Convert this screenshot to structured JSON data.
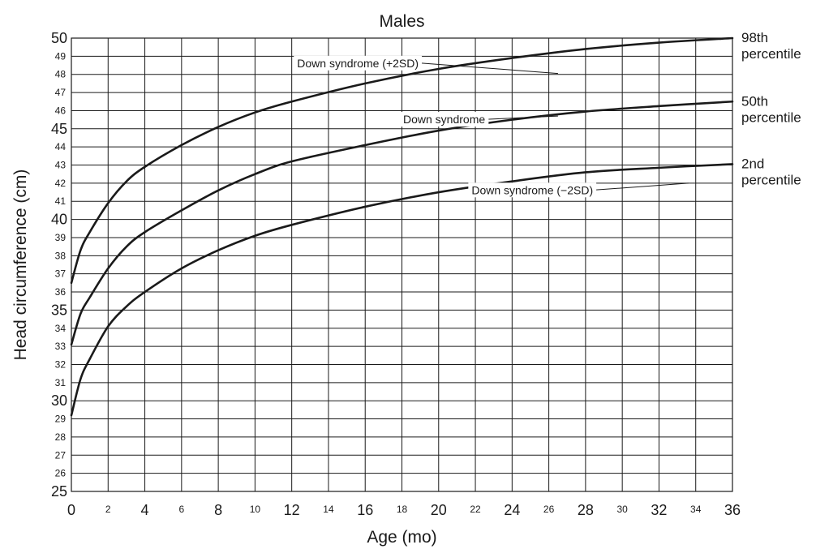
{
  "chart_data": {
    "type": "line",
    "title": "Males",
    "xlabel": "Age (mo)",
    "ylabel": "Head circumference (cm)",
    "xlim": [
      0,
      36
    ],
    "ylim": [
      25,
      50
    ],
    "x_ticks": [
      0,
      2,
      4,
      6,
      8,
      10,
      12,
      14,
      16,
      18,
      20,
      22,
      24,
      26,
      28,
      30,
      32,
      34,
      36
    ],
    "x_tick_labels": [
      "0",
      "2",
      "4",
      "6",
      "8",
      "10",
      "12",
      "14",
      "16",
      "18",
      "20",
      "22",
      "24",
      "26",
      "28",
      "30",
      "32",
      "34",
      "36"
    ],
    "x_major_ticks": [
      0,
      4,
      8,
      12,
      16,
      20,
      24,
      28,
      32,
      36
    ],
    "y_ticks": [
      25,
      26,
      27,
      28,
      29,
      30,
      31,
      32,
      33,
      34,
      35,
      36,
      37,
      38,
      39,
      40,
      41,
      42,
      43,
      44,
      45,
      46,
      47,
      48,
      49,
      50
    ],
    "y_tick_labels": [
      "25",
      "26",
      "27",
      "28",
      "29",
      "30",
      "31",
      "32",
      "33",
      "34",
      "35",
      "36",
      "37",
      "38",
      "39",
      "40",
      "41",
      "42",
      "43",
      "44",
      "45",
      "46",
      "47",
      "48",
      "49",
      "50"
    ],
    "y_major_ticks": [
      25,
      30,
      35,
      40,
      45,
      50
    ],
    "grid": true,
    "x": [
      0,
      0.5,
      1,
      2,
      3,
      4,
      6,
      8,
      10,
      12,
      16,
      20,
      24,
      28,
      32,
      36
    ],
    "series": [
      {
        "name": "Down syndrome (+2SD)",
        "end_label": "98th percentile",
        "end_label_lines": [
          "98th",
          "percentile"
        ],
        "values": [
          36.5,
          38.3,
          39.3,
          40.9,
          42.1,
          42.9,
          44.1,
          45.1,
          45.9,
          46.5,
          47.5,
          48.3,
          48.9,
          49.4,
          49.75,
          50.0
        ],
        "label_at": [
          15.6,
          48.4
        ],
        "label_leader_to": [
          26.5,
          48.05
        ]
      },
      {
        "name": "Down syndrome",
        "end_label": "50th percentile",
        "end_label_lines": [
          "50th",
          "percentile"
        ],
        "values": [
          33.1,
          34.8,
          35.7,
          37.3,
          38.5,
          39.3,
          40.5,
          41.6,
          42.5,
          43.2,
          44.1,
          44.9,
          45.5,
          45.95,
          46.25,
          46.5
        ],
        "label_at": [
          20.3,
          45.3
        ],
        "label_leader_to": [
          26.5,
          45.7
        ]
      },
      {
        "name": "Down syndrome (−2SD)",
        "end_label": "2nd percentile",
        "end_label_lines": [
          "2nd",
          "percentile"
        ],
        "values": [
          29.2,
          31.2,
          32.3,
          34.1,
          35.2,
          36.0,
          37.3,
          38.3,
          39.1,
          39.7,
          40.7,
          41.5,
          42.1,
          42.6,
          42.85,
          43.05
        ],
        "label_at": [
          25.1,
          41.4
        ],
        "label_leader_to": [
          33.6,
          42.0
        ]
      }
    ]
  }
}
